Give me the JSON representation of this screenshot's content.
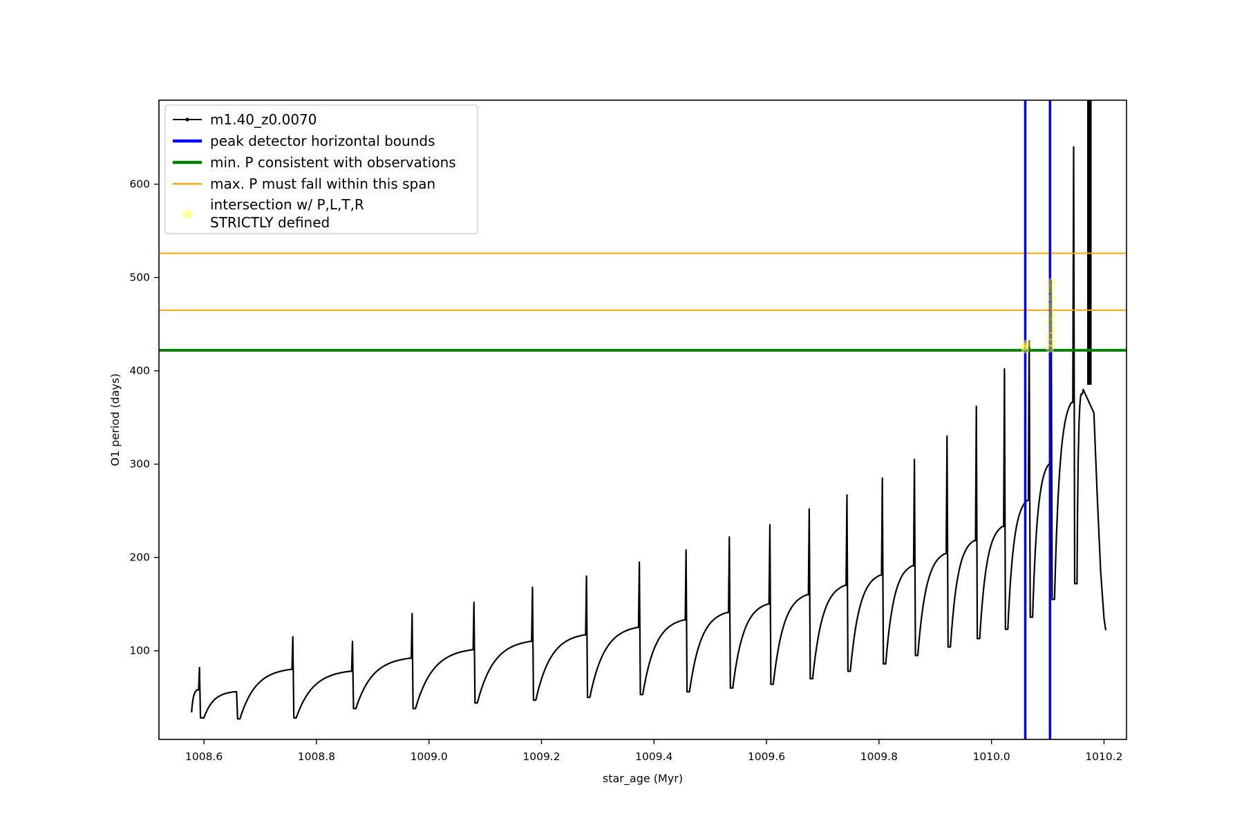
{
  "figure": {
    "background": "#ffffff"
  },
  "chart_data": {
    "type": "line",
    "title": "",
    "xlabel": "star_age (Myr)",
    "ylabel": "O1 period (days)",
    "xlim": [
      1008.52,
      1010.24
    ],
    "ylim": [
      5,
      690
    ],
    "xticks": [
      1008.6,
      1008.8,
      1009.0,
      1009.2,
      1009.4,
      1009.6,
      1009.8,
      1010.0,
      1010.2
    ],
    "yticks": [
      100,
      200,
      300,
      400,
      500,
      600
    ],
    "grid": false,
    "series_name": "m1.40_z0.0070",
    "series_color": "#000000",
    "series_encoding": "teeth entries are [x_start, x_spike, y_min, y_plateau, y_spike]; curve rises concavely from y_min to y_plateau, spikes to y_spike, then drops to the next tooth's y_min",
    "teeth": [
      [
        1008.578,
        1008.592,
        34,
        58,
        82
      ],
      [
        1008.6,
        1008.658,
        28,
        56,
        56
      ],
      [
        1008.664,
        1008.758,
        27,
        80,
        115
      ],
      [
        1008.764,
        1008.864,
        28,
        78,
        110
      ],
      [
        1008.87,
        1008.97,
        38,
        92,
        140
      ],
      [
        1008.976,
        1009.08,
        38,
        101,
        152
      ],
      [
        1009.086,
        1009.184,
        44,
        110,
        168
      ],
      [
        1009.19,
        1009.28,
        47,
        117,
        180
      ],
      [
        1009.286,
        1009.374,
        50,
        125,
        195
      ],
      [
        1009.38,
        1009.457,
        53,
        133,
        208
      ],
      [
        1009.463,
        1009.534,
        56,
        141,
        222
      ],
      [
        1009.54,
        1009.606,
        60,
        150,
        235
      ],
      [
        1009.612,
        1009.676,
        64,
        160,
        252
      ],
      [
        1009.682,
        1009.743,
        70,
        170,
        267
      ],
      [
        1009.749,
        1009.806,
        78,
        181,
        285
      ],
      [
        1009.812,
        1009.863,
        86,
        191,
        305
      ],
      [
        1009.869,
        1009.921,
        95,
        204,
        330
      ],
      [
        1009.927,
        1009.973,
        104,
        218,
        362
      ],
      [
        1009.979,
        1010.023,
        113,
        233,
        402
      ],
      [
        1010.029,
        1010.067,
        123,
        261,
        432
      ],
      [
        1010.073,
        1010.106,
        136,
        300,
        497
      ],
      [
        1010.112,
        1010.146,
        155,
        366,
        640
      ],
      [
        1010.152,
        1010.163,
        172,
        375,
        380
      ]
    ],
    "clipped_spike": {
      "x1": 1010.17,
      "x2": 1010.178,
      "y_base": 385,
      "note": "dense spike clipped at top of axes"
    },
    "tail": [
      [
        1010.182,
        355
      ],
      [
        1010.188,
        265
      ],
      [
        1010.194,
        185
      ],
      [
        1010.2,
        135
      ],
      [
        1010.203,
        122
      ]
    ],
    "vlines_blue": {
      "color": "#0000ff",
      "width": 3.5,
      "x": [
        1010.06,
        1010.104
      ],
      "label": "peak detector horizontal bounds"
    },
    "hline_green": {
      "color": "#008000",
      "width": 4,
      "y": 422,
      "label": "min. P consistent with observations"
    },
    "hlines_orange": {
      "color": "#ffa500",
      "width": 2,
      "y": [
        465,
        526
      ],
      "label": "max. P must fall within this span"
    },
    "scatter_yellow": {
      "color": "#ffff33",
      "opacity": 0.45,
      "radius": 6,
      "label": "intersection w/ P,L,T,R STRICTLY defined",
      "points": [
        [
          1010.06,
          423
        ],
        [
          1010.062,
          429
        ],
        [
          1010.059,
          426
        ],
        [
          1010.104,
          424
        ],
        [
          1010.106,
          430
        ],
        [
          1010.104,
          437
        ],
        [
          1010.107,
          444
        ],
        [
          1010.105,
          452
        ],
        [
          1010.106,
          460
        ],
        [
          1010.104,
          469
        ],
        [
          1010.107,
          478
        ],
        [
          1010.105,
          487
        ],
        [
          1010.106,
          495
        ]
      ]
    },
    "legend": {
      "position": "upper-left",
      "entries": [
        {
          "label": "m1.40_z0.0070",
          "type": "line-marker",
          "color": "#000000",
          "lw": 2
        },
        {
          "label": "peak detector horizontal bounds",
          "type": "line",
          "color": "#0000ff",
          "lw": 4.5
        },
        {
          "label": "min. P consistent with observations",
          "type": "line",
          "color": "#008000",
          "lw": 4.5
        },
        {
          "label": "max. P must fall within this span",
          "type": "line",
          "color": "#ffa500",
          "lw": 2.5
        },
        {
          "label": "intersection w/ P,L,T,R",
          "label2": "STRICTLY defined",
          "type": "dot",
          "color": "#ffff33"
        }
      ]
    }
  }
}
